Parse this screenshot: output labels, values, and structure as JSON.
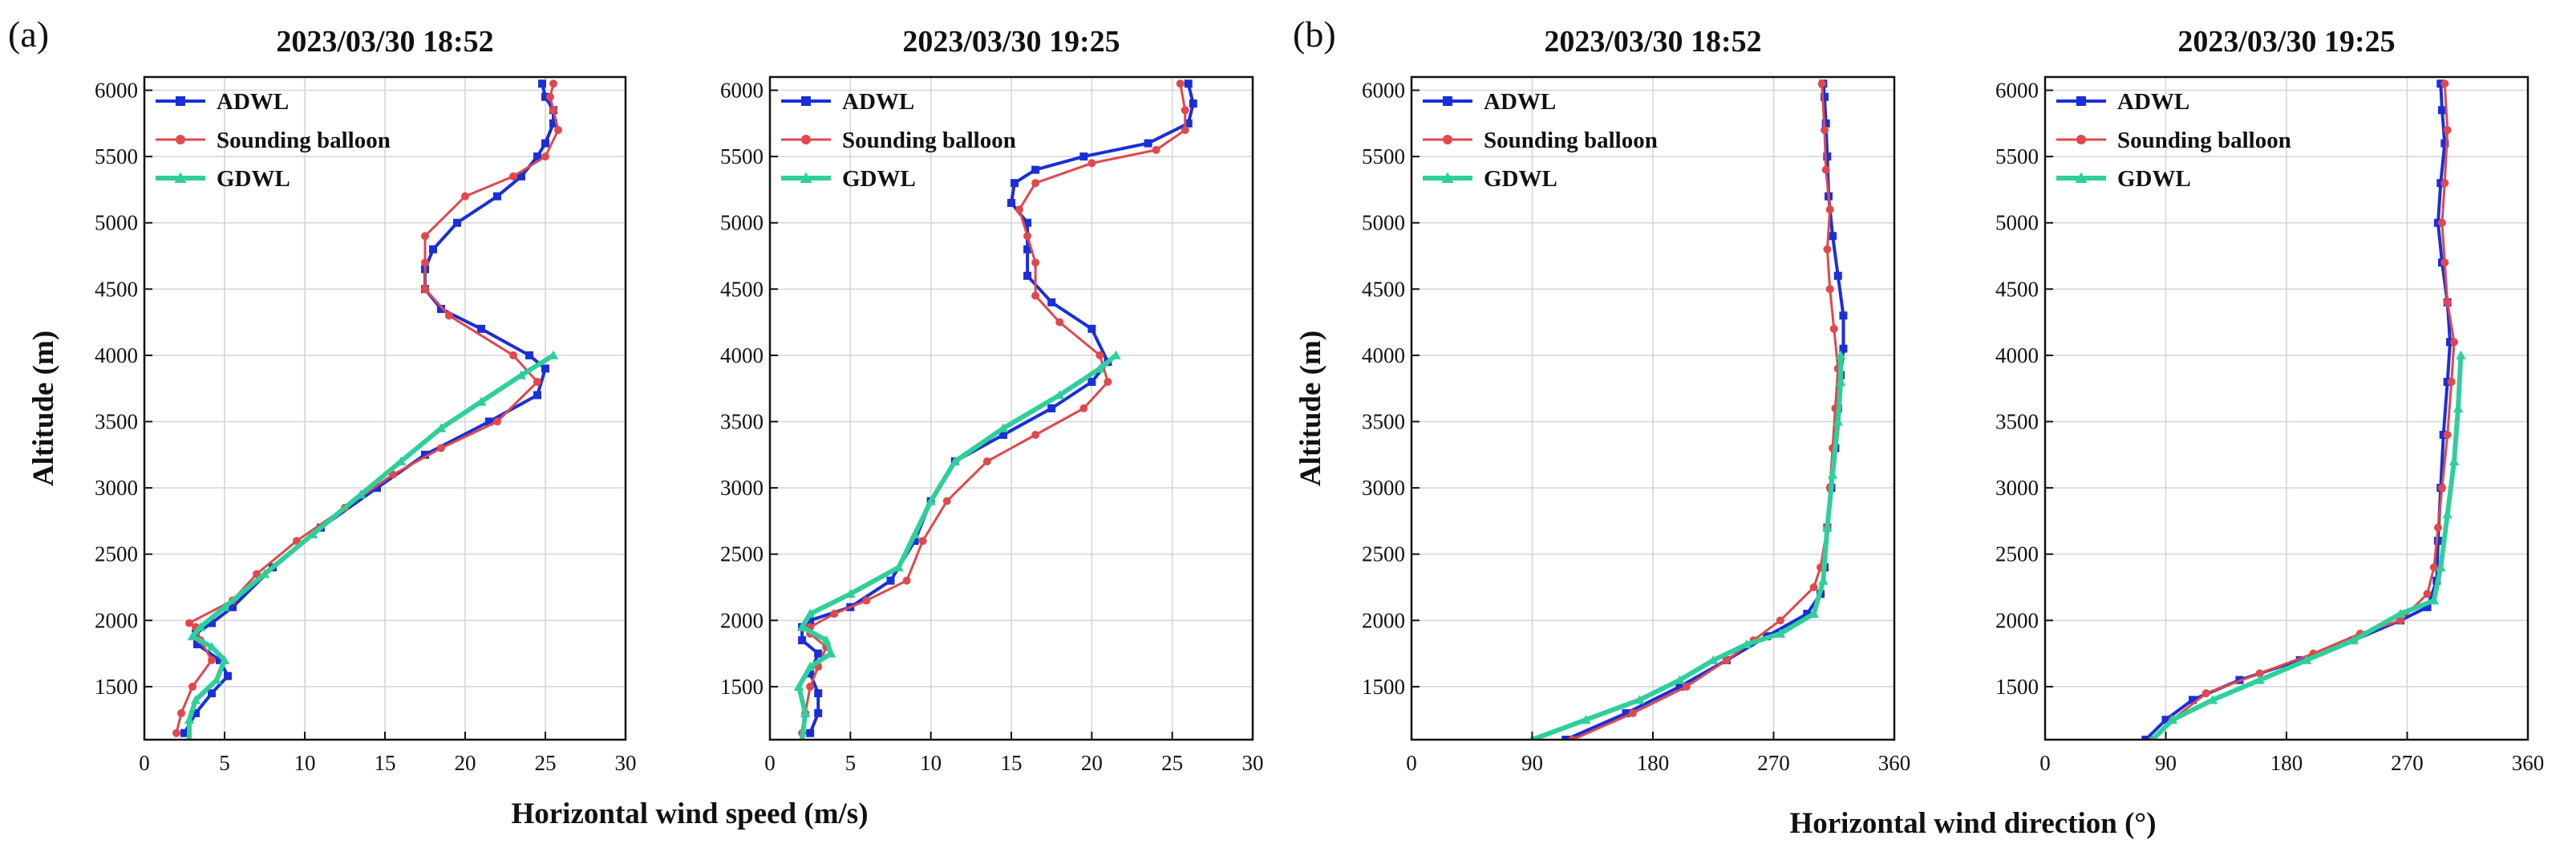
{
  "panel_labels": [
    "(a)",
    "(b)"
  ],
  "colors": {
    "ADWL": "#1a2fd6",
    "Sounding balloon": "#e0484c",
    "GDWL": "#2fcf9b",
    "grid": "#d4d4d4"
  },
  "group_xlabels": {
    "speed": "Horizontal wind speed (m/s)",
    "direction": "Horizontal wind direction (°)"
  },
  "chart_data": [
    {
      "type": "line",
      "panel": "(a)",
      "title": "2023/03/30 18:52",
      "xlabel": "Horizontal wind speed (m/s)",
      "ylabel": "Altitude (m)",
      "xlim": [
        0,
        30
      ],
      "ylim": [
        1100,
        6100
      ],
      "xticks": [
        0,
        5,
        10,
        15,
        20,
        25,
        30
      ],
      "yticks": [
        1500,
        2000,
        2500,
        3000,
        3500,
        4000,
        4500,
        5000,
        5500,
        6000
      ],
      "legend": [
        "ADWL",
        "Sounding balloon",
        "GDWL"
      ],
      "series": [
        {
          "name": "ADWL",
          "x": [
            2.5,
            3.2,
            4.2,
            5.2,
            4.7,
            3.3,
            3.2,
            4.2,
            5.5,
            8,
            11,
            14.5,
            17.5,
            21.5,
            24.5,
            25,
            24,
            21,
            18.5,
            17.5,
            17.5,
            18,
            19.5,
            22,
            23.5,
            24.5,
            25,
            25.5,
            25.5,
            25,
            24.8
          ],
          "y": [
            1150,
            1300,
            1450,
            1580,
            1700,
            1820,
            1900,
            1980,
            2100,
            2400,
            2700,
            3000,
            3250,
            3500,
            3700,
            3900,
            4000,
            4200,
            4350,
            4500,
            4650,
            4800,
            5000,
            5200,
            5350,
            5500,
            5600,
            5750,
            5850,
            5950,
            6050
          ]
        },
        {
          "name": "Sounding balloon",
          "x": [
            2,
            2.3,
            3,
            4.2,
            3.5,
            3.2,
            2.8,
            5.5,
            7,
            9.5,
            12.5,
            15.5,
            18.5,
            22,
            24.5,
            23,
            19,
            17.5,
            17.5,
            17.5,
            20,
            23,
            25,
            25.8,
            25.5,
            25.3,
            25.5
          ],
          "y": [
            1150,
            1300,
            1500,
            1700,
            1850,
            1950,
            1980,
            2150,
            2350,
            2600,
            2850,
            3100,
            3300,
            3500,
            3800,
            4000,
            4300,
            4500,
            4700,
            4900,
            5200,
            5350,
            5500,
            5700,
            5850,
            5950,
            6050
          ]
        },
        {
          "name": "GDWL",
          "x": [
            2.8,
            2.8,
            3.2,
            4.5,
            5,
            4.2,
            3,
            3.5,
            5,
            7.5,
            10.5,
            13.5,
            16,
            18.5,
            21,
            23.5,
            25.5
          ],
          "y": [
            1100,
            1250,
            1400,
            1550,
            1700,
            1800,
            1880,
            1950,
            2100,
            2350,
            2650,
            2950,
            3200,
            3450,
            3650,
            3850,
            4000
          ]
        }
      ]
    },
    {
      "type": "line",
      "panel": "(a)",
      "title": "2023/03/30 19:25",
      "xlabel": "Horizontal wind speed (m/s)",
      "ylabel": "",
      "xlim": [
        0,
        30
      ],
      "ylim": [
        1100,
        6100
      ],
      "xticks": [
        0,
        5,
        10,
        15,
        20,
        25,
        30
      ],
      "yticks": [
        1500,
        2000,
        2500,
        3000,
        3500,
        4000,
        4500,
        5000,
        5500,
        6000
      ],
      "legend": [
        "ADWL",
        "Sounding balloon",
        "GDWL"
      ],
      "series": [
        {
          "name": "ADWL",
          "x": [
            2.5,
            3,
            3,
            2.5,
            3,
            2,
            2,
            2.5,
            5,
            7.5,
            9,
            10,
            11.5,
            14.5,
            17.5,
            20,
            21,
            20,
            17.5,
            16,
            16,
            16,
            15,
            15.2,
            16.5,
            19.5,
            23.5,
            26,
            26.3,
            26
          ],
          "y": [
            1150,
            1300,
            1450,
            1600,
            1750,
            1850,
            1950,
            2000,
            2100,
            2300,
            2600,
            2900,
            3200,
            3400,
            3600,
            3800,
            3950,
            4200,
            4400,
            4600,
            4800,
            5000,
            5150,
            5300,
            5400,
            5500,
            5600,
            5750,
            5900,
            6050
          ]
        },
        {
          "name": "Sounding balloon",
          "x": [
            2,
            2.2,
            2.5,
            3,
            3.5,
            2.5,
            2.5,
            4,
            6,
            8.5,
            9.5,
            11,
            13.5,
            16.5,
            19.5,
            21,
            20.5,
            18,
            16.5,
            16.5,
            16,
            15.5,
            16.5,
            20,
            24,
            25.8,
            25.8,
            25.5
          ],
          "y": [
            1150,
            1300,
            1500,
            1650,
            1800,
            1900,
            1950,
            2050,
            2150,
            2300,
            2600,
            2900,
            3200,
            3400,
            3600,
            3800,
            4000,
            4250,
            4450,
            4700,
            4900,
            5100,
            5300,
            5450,
            5550,
            5700,
            5850,
            6050
          ]
        },
        {
          "name": "GDWL",
          "x": [
            2,
            2.2,
            1.8,
            2.5,
            3.8,
            3.5,
            2,
            2.5,
            5,
            8,
            9,
            10,
            11.5,
            14.5,
            18,
            20.5,
            21.5
          ],
          "y": [
            1100,
            1300,
            1500,
            1650,
            1750,
            1850,
            1950,
            2050,
            2200,
            2400,
            2650,
            2900,
            3200,
            3450,
            3700,
            3900,
            4000
          ]
        }
      ]
    },
    {
      "type": "line",
      "panel": "(b)",
      "title": "2023/03/30 18:52",
      "xlabel": "Horizontal wind direction (°)",
      "ylabel": "Altitude (m)",
      "xlim": [
        0,
        360
      ],
      "ylim": [
        1100,
        6100
      ],
      "xticks": [
        0,
        90,
        180,
        270,
        360
      ],
      "yticks": [
        1500,
        2000,
        2500,
        3000,
        3500,
        4000,
        4500,
        5000,
        5500,
        6000
      ],
      "legend": [
        "ADWL",
        "Sounding balloon",
        "GDWL"
      ],
      "series": [
        {
          "name": "ADWL",
          "x": [
            115,
            160,
            200,
            235,
            265,
            295,
            305,
            308,
            310,
            313,
            316,
            318,
            320,
            322,
            322,
            318,
            314,
            311,
            310,
            309,
            308,
            307
          ],
          "y": [
            1100,
            1300,
            1500,
            1700,
            1880,
            2050,
            2200,
            2400,
            2700,
            3000,
            3300,
            3600,
            3850,
            4050,
            4300,
            4600,
            4900,
            5200,
            5500,
            5750,
            5950,
            6050
          ]
        },
        {
          "name": "Sounding balloon",
          "x": [
            120,
            165,
            205,
            235,
            255,
            275,
            300,
            305,
            310,
            312,
            314,
            316,
            318,
            315,
            312,
            310,
            312,
            309,
            308,
            306
          ],
          "y": [
            1100,
            1300,
            1500,
            1700,
            1850,
            2000,
            2250,
            2400,
            2700,
            3000,
            3300,
            3600,
            3900,
            4200,
            4500,
            4800,
            5100,
            5400,
            5700,
            6050
          ]
        },
        {
          "name": "GDWL",
          "x": [
            90,
            130,
            170,
            200,
            225,
            250,
            275,
            300,
            307,
            310,
            314,
            318,
            320,
            320
          ],
          "y": [
            1100,
            1250,
            1400,
            1550,
            1700,
            1820,
            1900,
            2050,
            2300,
            2700,
            3100,
            3500,
            3800,
            4000
          ]
        }
      ]
    },
    {
      "type": "line",
      "panel": "(b)",
      "title": "2023/03/30 19:25",
      "xlabel": "Horizontal wind direction (°)",
      "ylabel": "",
      "xlim": [
        0,
        360
      ],
      "ylim": [
        1100,
        6100
      ],
      "xticks": [
        0,
        90,
        180,
        270,
        360
      ],
      "yticks": [
        1500,
        2000,
        2500,
        3000,
        3500,
        4000,
        4500,
        5000,
        5500,
        6000
      ],
      "legend": [
        "ADWL",
        "Sounding balloon",
        "GDWL"
      ],
      "series": [
        {
          "name": "ADWL",
          "x": [
            75,
            90,
            110,
            145,
            190,
            230,
            265,
            285,
            292,
            293,
            295,
            297,
            300,
            302,
            300,
            296,
            293,
            295,
            298,
            296,
            295
          ],
          "y": [
            1100,
            1250,
            1400,
            1550,
            1700,
            1850,
            2000,
            2100,
            2300,
            2600,
            3000,
            3400,
            3800,
            4100,
            4400,
            4700,
            5000,
            5300,
            5600,
            5850,
            6050
          ]
        },
        {
          "name": "Sounding balloon",
          "x": [
            80,
            95,
            120,
            160,
            200,
            235,
            265,
            285,
            290,
            293,
            296,
            300,
            303,
            305,
            300,
            298,
            296,
            298,
            300,
            298
          ],
          "y": [
            1100,
            1250,
            1450,
            1600,
            1750,
            1900,
            2000,
            2200,
            2400,
            2700,
            3000,
            3400,
            3800,
            4100,
            4400,
            4700,
            5000,
            5300,
            5700,
            6050
          ]
        },
        {
          "name": "GDWL",
          "x": [
            80,
            95,
            125,
            160,
            195,
            230,
            265,
            290,
            295,
            300,
            305,
            308,
            310
          ],
          "y": [
            1100,
            1250,
            1400,
            1550,
            1700,
            1850,
            2050,
            2150,
            2400,
            2800,
            3200,
            3600,
            4000
          ]
        }
      ]
    }
  ]
}
